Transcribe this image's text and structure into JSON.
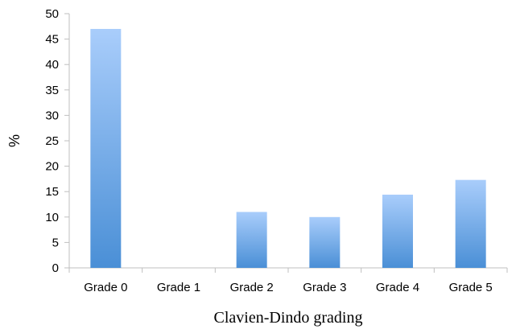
{
  "chart_data": {
    "type": "bar",
    "title": "",
    "xlabel": "Clavien-Dindo grading",
    "ylabel": "%",
    "categories": [
      "Grade 0",
      "Grade 1",
      "Grade 2",
      "Grade 3",
      "Grade 4",
      "Grade 5"
    ],
    "values": [
      47,
      0,
      11,
      10,
      14.4,
      17.3
    ],
    "ylim": [
      0,
      50
    ],
    "yticks": [
      0,
      5,
      10,
      15,
      20,
      25,
      30,
      35,
      40,
      45,
      50
    ],
    "ytick_labels": [
      "0",
      "5",
      "10",
      "15",
      "20",
      "25",
      "30",
      "35",
      "40",
      "45",
      "50"
    ],
    "grid": false,
    "legend": "none",
    "colors": {
      "bar_top": "#a9cdfb",
      "bar_bottom": "#4a8fd6",
      "axis": "#bfbfbf"
    }
  }
}
